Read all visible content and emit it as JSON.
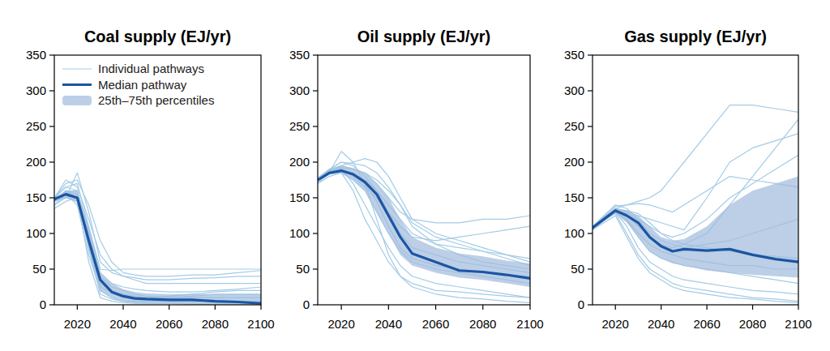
{
  "chart_data": [
    {
      "type": "line",
      "title": "Coal supply (EJ/yr)",
      "x": [
        2010,
        2015,
        2020,
        2025,
        2030,
        2035,
        2040,
        2045,
        2050,
        2060,
        2070,
        2080,
        2090,
        2100
      ],
      "xlim": [
        2010,
        2100
      ],
      "xticks": [
        2020,
        2040,
        2060,
        2080,
        2100
      ],
      "ylim": [
        0,
        350
      ],
      "yticks": [
        0,
        50,
        100,
        150,
        200,
        250,
        300,
        350
      ],
      "legend": "upper left",
      "series": [
        {
          "name": "Individual pathways",
          "color": "#a3cbe5",
          "line_style": "thin",
          "values": [
            145,
            160,
            150,
            100,
            40,
            25,
            20,
            15,
            12,
            10,
            10,
            10,
            10,
            10
          ]
        },
        {
          "color": "#a3cbe5",
          "line_style": "thin",
          "values": [
            140,
            150,
            185,
            130,
            60,
            45,
            40,
            35,
            30,
            30,
            30,
            30,
            30,
            30
          ]
        },
        {
          "color": "#a3cbe5",
          "line_style": "thin",
          "values": [
            150,
            165,
            170,
            110,
            50,
            48,
            50,
            50,
            50,
            50,
            50,
            50,
            50,
            50
          ]
        },
        {
          "color": "#a3cbe5",
          "line_style": "thin",
          "values": [
            148,
            155,
            140,
            70,
            20,
            10,
            5,
            3,
            2,
            2,
            1,
            1,
            1,
            1
          ]
        },
        {
          "color": "#a3cbe5",
          "line_style": "thin",
          "values": [
            135,
            145,
            150,
            90,
            30,
            20,
            15,
            12,
            10,
            10,
            12,
            15,
            15,
            15
          ]
        },
        {
          "color": "#a3cbe5",
          "line_style": "thin",
          "values": [
            150,
            175,
            165,
            120,
            70,
            50,
            40,
            38,
            35,
            35,
            37,
            38,
            40,
            40
          ]
        },
        {
          "color": "#a3cbe5",
          "line_style": "thin",
          "values": [
            145,
            160,
            155,
            80,
            15,
            8,
            5,
            5,
            5,
            5,
            5,
            5,
            5,
            5
          ]
        },
        {
          "color": "#a3cbe5",
          "line_style": "thin",
          "values": [
            150,
            170,
            175,
            140,
            90,
            60,
            45,
            42,
            40,
            40,
            42,
            42,
            45,
            48
          ]
        },
        {
          "color": "#a3cbe5",
          "line_style": "thin",
          "values": [
            140,
            155,
            150,
            60,
            10,
            5,
            3,
            2,
            2,
            2,
            2,
            2,
            2,
            2
          ]
        },
        {
          "color": "#a3cbe5",
          "line_style": "thin",
          "values": [
            148,
            158,
            160,
            105,
            45,
            30,
            25,
            22,
            20,
            18,
            18,
            20,
            22,
            25
          ]
        },
        {
          "color": "#a3cbe5",
          "line_style": "thin",
          "values": [
            145,
            150,
            145,
            95,
            35,
            20,
            12,
            10,
            10,
            12,
            15,
            18,
            20,
            20
          ]
        },
        {
          "color": "#a3cbe5",
          "line_style": "thin",
          "values": [
            150,
            165,
            160,
            85,
            25,
            18,
            15,
            10,
            8,
            5,
            5,
            5,
            5,
            5
          ]
        },
        {
          "name": "Median pathway",
          "color": "#1b55a3",
          "line_style": "thick",
          "values": [
            148,
            155,
            150,
            90,
            35,
            18,
            12,
            9,
            8,
            7,
            7,
            5,
            4,
            2
          ]
        },
        {
          "name": "25th–75th percentiles",
          "type": "area",
          "color": "#9fbadd",
          "lower": [
            145,
            150,
            145,
            75,
            20,
            10,
            5,
            3,
            2,
            2,
            2,
            2,
            2,
            1
          ],
          "upper": [
            150,
            160,
            160,
            110,
            45,
            30,
            22,
            18,
            16,
            15,
            15,
            15,
            15,
            15
          ]
        }
      ]
    },
    {
      "type": "line",
      "title": "Oil supply (EJ/yr)",
      "x": [
        2010,
        2015,
        2020,
        2025,
        2030,
        2035,
        2040,
        2045,
        2050,
        2060,
        2070,
        2080,
        2090,
        2100
      ],
      "xlim": [
        2010,
        2100
      ],
      "xticks": [
        2020,
        2040,
        2060,
        2080,
        2100
      ],
      "ylim": [
        0,
        350
      ],
      "yticks": [
        0,
        50,
        100,
        150,
        200,
        250,
        300,
        350
      ],
      "series": [
        {
          "color": "#a3cbe5",
          "line_style": "thin",
          "values": [
            175,
            190,
            200,
            195,
            180,
            160,
            130,
            100,
            80,
            70,
            60,
            55,
            50,
            45
          ]
        },
        {
          "color": "#a3cbe5",
          "line_style": "thin",
          "values": [
            170,
            185,
            195,
            200,
            205,
            200,
            180,
            150,
            120,
            100,
            90,
            80,
            70,
            60
          ]
        },
        {
          "color": "#a3cbe5",
          "line_style": "thin",
          "values": [
            175,
            185,
            190,
            170,
            140,
            110,
            80,
            55,
            40,
            30,
            25,
            20,
            15,
            10
          ]
        },
        {
          "color": "#a3cbe5",
          "line_style": "thin",
          "values": [
            178,
            190,
            195,
            190,
            185,
            170,
            150,
            130,
            120,
            115,
            115,
            120,
            120,
            125
          ]
        },
        {
          "color": "#a3cbe5",
          "line_style": "thin",
          "values": [
            172,
            183,
            185,
            175,
            160,
            130,
            100,
            75,
            60,
            50,
            45,
            40,
            35,
            30
          ]
        },
        {
          "color": "#a3cbe5",
          "line_style": "thin",
          "values": [
            175,
            188,
            190,
            185,
            175,
            160,
            140,
            120,
            100,
            85,
            80,
            75,
            70,
            65
          ]
        },
        {
          "color": "#a3cbe5",
          "line_style": "thin",
          "values": [
            174,
            186,
            215,
            200,
            170,
            120,
            70,
            40,
            25,
            15,
            10,
            8,
            5,
            3
          ]
        },
        {
          "color": "#a3cbe5",
          "line_style": "thin",
          "values": [
            176,
            187,
            190,
            180,
            165,
            150,
            130,
            110,
            95,
            90,
            95,
            100,
            105,
            110
          ]
        },
        {
          "color": "#a3cbe5",
          "line_style": "thin",
          "values": [
            173,
            184,
            188,
            182,
            170,
            145,
            110,
            80,
            65,
            55,
            50,
            45,
            42,
            40
          ]
        },
        {
          "color": "#a3cbe5",
          "line_style": "thin",
          "values": [
            175,
            189,
            192,
            190,
            185,
            175,
            160,
            140,
            110,
            85,
            70,
            60,
            55,
            50
          ]
        },
        {
          "color": "#a3cbe5",
          "line_style": "thin",
          "values": [
            170,
            180,
            185,
            160,
            120,
            90,
            60,
            40,
            30,
            20,
            18,
            15,
            12,
            10
          ]
        },
        {
          "color": "#a3cbe5",
          "line_style": "thin",
          "values": [
            177,
            190,
            200,
            198,
            195,
            185,
            165,
            140,
            115,
            95,
            85,
            75,
            65,
            55
          ]
        },
        {
          "color": "#1b55a3",
          "line_style": "thick",
          "values": [
            175,
            185,
            188,
            183,
            172,
            155,
            125,
            95,
            72,
            60,
            48,
            46,
            42,
            37
          ]
        },
        {
          "type": "area",
          "color": "#9fbadd",
          "lower": [
            173,
            185,
            185,
            175,
            160,
            130,
            100,
            70,
            55,
            45,
            38,
            35,
            30,
            25
          ],
          "upper": [
            176,
            190,
            195,
            192,
            185,
            170,
            150,
            120,
            95,
            80,
            72,
            68,
            62,
            58
          ]
        }
      ]
    },
    {
      "type": "line",
      "title": "Gas supply (EJ/yr)",
      "x": [
        2010,
        2015,
        2020,
        2025,
        2030,
        2035,
        2040,
        2045,
        2050,
        2060,
        2070,
        2080,
        2090,
        2100
      ],
      "xlim": [
        2010,
        2100
      ],
      "xticks": [
        2020,
        2040,
        2060,
        2080,
        2100
      ],
      "ylim": [
        0,
        350
      ],
      "yticks": [
        0,
        50,
        100,
        150,
        200,
        250,
        300,
        350
      ],
      "series": [
        {
          "color": "#a3cbe5",
          "line_style": "thin",
          "values": [
            108,
            120,
            135,
            140,
            145,
            150,
            160,
            180,
            200,
            240,
            280,
            280,
            275,
            270
          ]
        },
        {
          "color": "#a3cbe5",
          "line_style": "thin",
          "values": [
            105,
            118,
            130,
            110,
            80,
            60,
            50,
            40,
            35,
            30,
            25,
            20,
            18,
            15
          ]
        },
        {
          "color": "#a3cbe5",
          "line_style": "thin",
          "values": [
            108,
            122,
            135,
            130,
            125,
            120,
            115,
            110,
            105,
            150,
            200,
            220,
            230,
            240
          ]
        },
        {
          "color": "#a3cbe5",
          "line_style": "thin",
          "values": [
            110,
            125,
            140,
            135,
            120,
            100,
            90,
            85,
            80,
            85,
            90,
            100,
            110,
            120
          ]
        },
        {
          "color": "#a3cbe5",
          "line_style": "thin",
          "values": [
            106,
            118,
            128,
            100,
            70,
            50,
            40,
            30,
            25,
            20,
            15,
            10,
            8,
            5
          ]
        },
        {
          "color": "#a3cbe5",
          "line_style": "thin",
          "values": [
            108,
            120,
            132,
            128,
            120,
            110,
            100,
            95,
            100,
            120,
            150,
            170,
            190,
            210
          ]
        },
        {
          "color": "#a3cbe5",
          "line_style": "thin",
          "values": [
            107,
            121,
            130,
            120,
            100,
            85,
            75,
            70,
            65,
            60,
            55,
            55,
            50,
            50
          ]
        },
        {
          "color": "#a3cbe5",
          "line_style": "thin",
          "values": [
            109,
            124,
            138,
            140,
            142,
            140,
            135,
            130,
            140,
            160,
            180,
            175,
            170,
            165
          ]
        },
        {
          "color": "#a3cbe5",
          "line_style": "thin",
          "values": [
            108,
            119,
            130,
            118,
            95,
            75,
            65,
            60,
            55,
            50,
            45,
            40,
            35,
            30
          ]
        },
        {
          "color": "#a3cbe5",
          "line_style": "thin",
          "values": [
            107,
            120,
            131,
            125,
            110,
            95,
            85,
            80,
            85,
            100,
            140,
            180,
            220,
            260
          ]
        },
        {
          "color": "#a3cbe5",
          "line_style": "thin",
          "values": [
            108,
            122,
            134,
            132,
            128,
            115,
            100,
            90,
            85,
            80,
            75,
            70,
            68,
            65
          ]
        },
        {
          "color": "#a3cbe5",
          "line_style": "thin",
          "values": [
            105,
            115,
            125,
            95,
            65,
            45,
            35,
            25,
            20,
            15,
            10,
            8,
            5,
            3
          ]
        },
        {
          "color": "#1b55a3",
          "line_style": "thick",
          "values": [
            108,
            120,
            132,
            125,
            115,
            95,
            82,
            75,
            78,
            76,
            78,
            70,
            64,
            60
          ]
        },
        {
          "type": "area",
          "color": "#9fbadd",
          "lower": [
            106,
            118,
            128,
            115,
            95,
            75,
            65,
            58,
            55,
            48,
            45,
            42,
            40,
            38
          ],
          "upper": [
            109,
            124,
            136,
            132,
            125,
            110,
            95,
            90,
            92,
            110,
            140,
            160,
            170,
            180
          ]
        }
      ]
    }
  ]
}
